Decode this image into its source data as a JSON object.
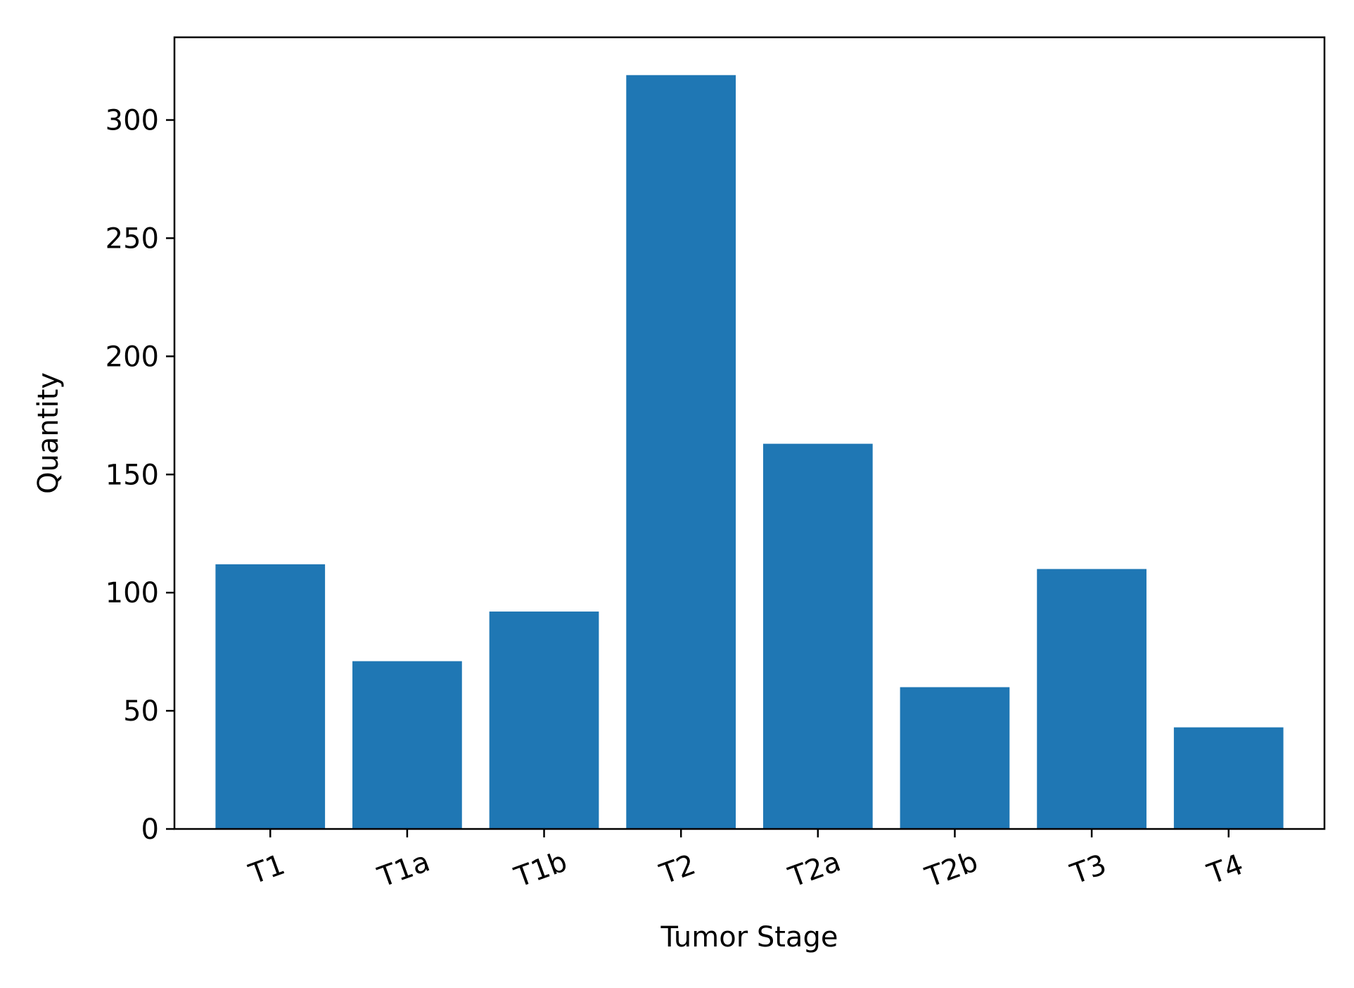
{
  "chart_data": {
    "type": "bar",
    "categories": [
      "T1",
      "T1a",
      "T1b",
      "T2",
      "T2a",
      "T2b",
      "T3",
      "T4"
    ],
    "values": [
      112,
      71,
      92,
      319,
      163,
      60,
      110,
      43
    ],
    "xlabel": "Tumor Stage",
    "ylabel": "Quantity",
    "ylim": [
      0,
      335
    ],
    "yticks": [
      0,
      50,
      100,
      150,
      200,
      250,
      300
    ],
    "grid": false,
    "bar_color": "#1f77b4"
  }
}
